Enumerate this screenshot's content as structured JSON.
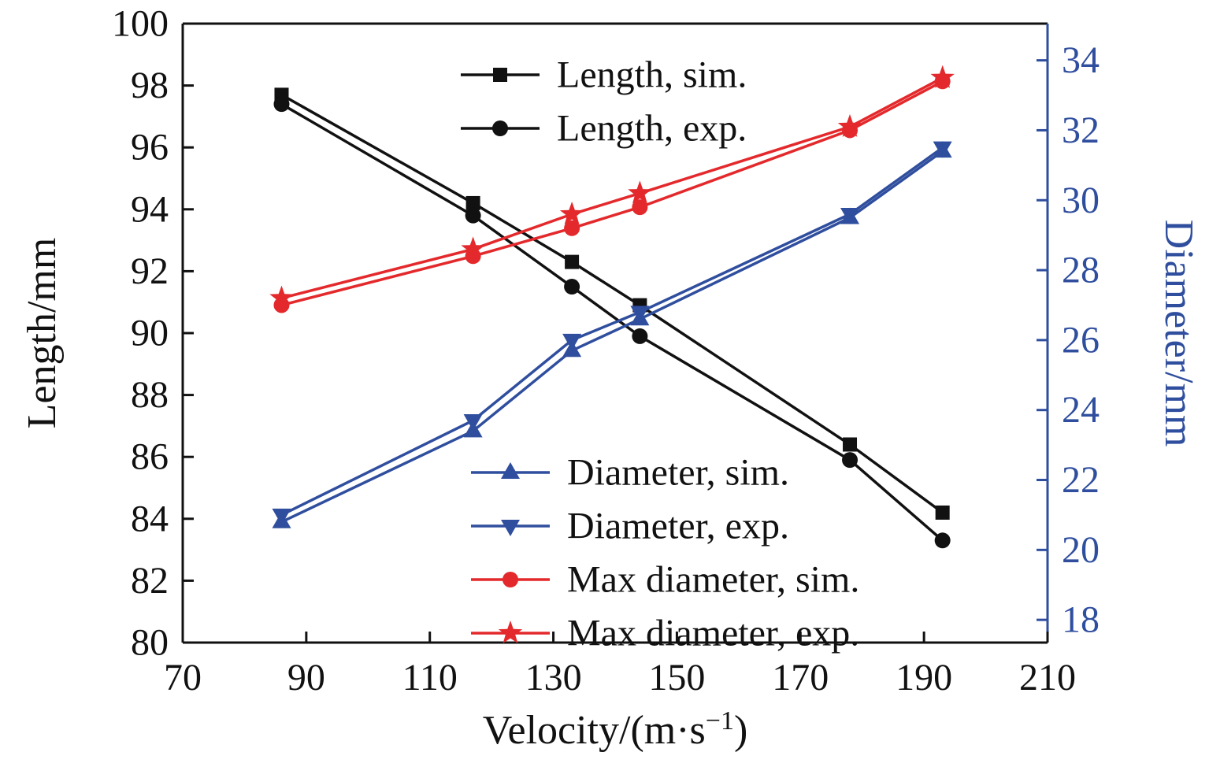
{
  "chart_data": {
    "type": "line",
    "title": "",
    "xlabel": "Velocity/(m·s⁻¹)",
    "ylabel_left": "Length/mm",
    "ylabel_right": "Diameter/mm",
    "xlim": [
      70,
      210
    ],
    "xticks": [
      70,
      90,
      110,
      130,
      150,
      170,
      190,
      210
    ],
    "ylim_left": [
      80,
      100
    ],
    "yticks_left": [
      80,
      82,
      84,
      86,
      88,
      90,
      92,
      94,
      96,
      98,
      100
    ],
    "ylim_right": [
      17.35,
      35.05
    ],
    "yticks_right": [
      18,
      20,
      22,
      24,
      26,
      28,
      30,
      32,
      34
    ],
    "grid": false,
    "x": [
      86,
      117,
      133,
      144,
      178,
      193
    ],
    "series": [
      {
        "name": "Length, sim.",
        "axis": "left",
        "color": "#111111",
        "marker": "square",
        "values": [
          97.7,
          94.2,
          92.3,
          90.9,
          86.4,
          84.2
        ]
      },
      {
        "name": "Length, exp.",
        "axis": "left",
        "color": "#111111",
        "marker": "circle",
        "values": [
          97.4,
          93.8,
          91.5,
          89.9,
          85.9,
          83.3
        ]
      },
      {
        "name": "Diameter, sim.",
        "axis": "right",
        "color": "#2f4e9e",
        "marker": "triangle-up",
        "values": [
          20.8,
          23.4,
          25.7,
          26.6,
          29.5,
          31.4
        ]
      },
      {
        "name": "Diameter, exp.",
        "axis": "right",
        "color": "#2f4e9e",
        "marker": "triangle-down",
        "values": [
          21.0,
          23.7,
          26.0,
          26.8,
          29.6,
          31.5
        ]
      },
      {
        "name": "Max diameter, sim.",
        "axis": "right",
        "color": "#e4292c",
        "marker": "circle",
        "values": [
          27.0,
          28.4,
          29.2,
          29.8,
          32.0,
          33.4
        ]
      },
      {
        "name": "Max diameter, exp.",
        "axis": "right",
        "color": "#e4292c",
        "marker": "star",
        "values": [
          27.2,
          28.6,
          29.6,
          30.2,
          32.1,
          33.5
        ]
      }
    ],
    "legends": [
      {
        "position": "top-center",
        "entries": [
          "Length, sim.",
          "Length, exp."
        ]
      },
      {
        "position": "lower-middle",
        "entries": [
          "Diameter, sim.",
          "Diameter, exp.",
          "Max diameter, sim.",
          "Max diameter, exp."
        ]
      }
    ],
    "colors": {
      "left_axis": "#000000",
      "right_axis": "#2f4e9e",
      "background": "#ffffff"
    }
  }
}
